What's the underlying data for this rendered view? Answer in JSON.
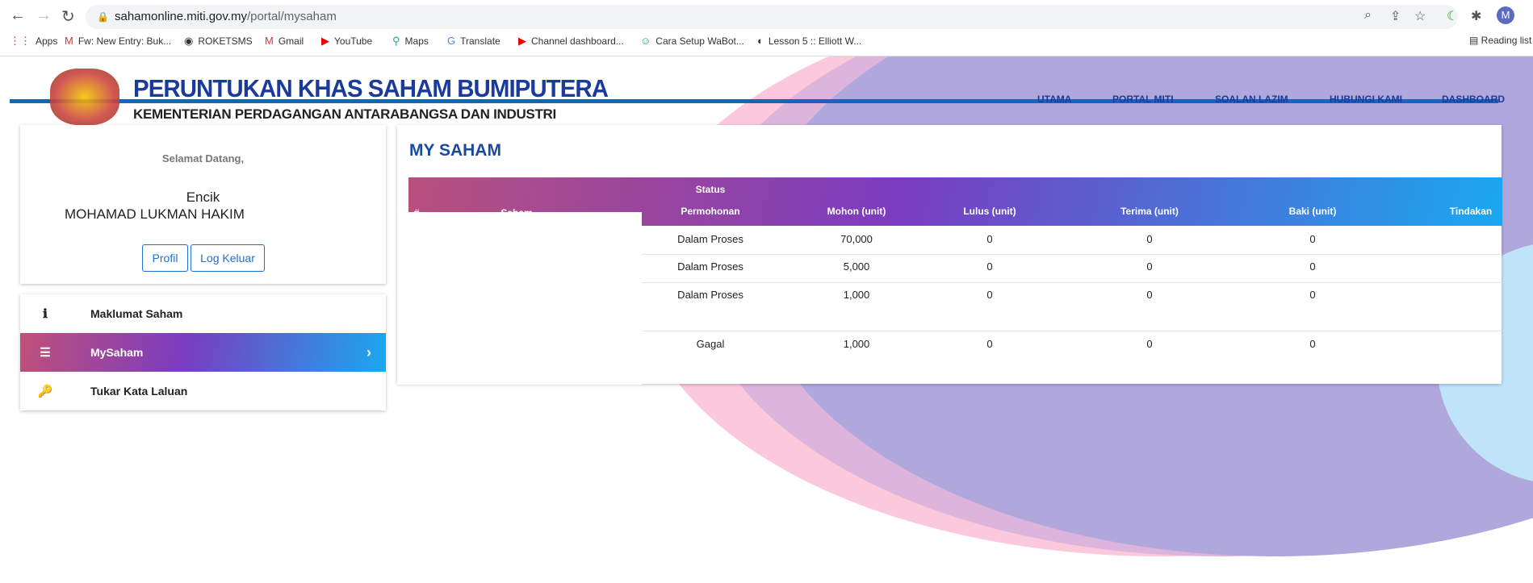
{
  "browser": {
    "url_host": "sahamonline.miti.gov.my",
    "url_path": "/portal/mysaham",
    "avatar": "M",
    "bookmarks": [
      "Apps",
      "Fw: New Entry: Buk...",
      "ROKETSMS",
      "Gmail",
      "YouTube",
      "Maps",
      "Translate",
      "Channel dashboard...",
      "Cara Setup WaBot...",
      "Lesson 5 :: Elliott W..."
    ],
    "reading_list": "Reading list"
  },
  "header": {
    "title": "PERUNTUKAN KHAS SAHAM BUMIPUTERA",
    "subtitle": "KEMENTERIAN PERDAGANGAN ANTARABANGSA DAN INDUSTRI",
    "nav": [
      "UTAMA",
      "PORTAL MITI",
      "SOALAN LAZIM",
      "HUBUNGI KAMI",
      "DASHBOARD"
    ]
  },
  "profile": {
    "welcome": "Selamat Datang,",
    "salutation": "Encik",
    "name": "MOHAMAD LUKMAN HAKIM",
    "profil_label": "Profil",
    "logout_label": "Log Keluar"
  },
  "menu": [
    {
      "label": "Maklumat Saham",
      "icon": "info-circle-icon"
    },
    {
      "label": "MySaham",
      "icon": "list-icon",
      "active": true
    },
    {
      "label": "Tukar Kata Laluan",
      "icon": "key-icon"
    }
  ],
  "main": {
    "title": "MY SAHAM",
    "columns": [
      "#",
      "Saham",
      "Status",
      "Permohonan",
      "Mohon (unit)",
      "Lulus (unit)",
      "Terima (unit)",
      "Baki (unit)",
      "Tindakan"
    ],
    "rows": [
      {
        "status": "Dalam Proses",
        "mohon": "70,000",
        "lulus": "0",
        "terima": "0",
        "baki": "0"
      },
      {
        "status": "Dalam Proses",
        "mohon": "5,000",
        "lulus": "0",
        "terima": "0",
        "baki": "0"
      },
      {
        "status": "Dalam Proses",
        "mohon": "1,000",
        "lulus": "0",
        "terima": "0",
        "baki": "0"
      },
      {
        "status": "Gagal",
        "mohon": "1,000",
        "lulus": "0",
        "terima": "0",
        "baki": "0"
      }
    ]
  },
  "colors": {
    "brand_blue": "#1a3a9c",
    "accent_blue": "#1e6fd0",
    "gradient_start": "#c0507a",
    "gradient_mid": "#7a3cc0",
    "gradient_end": "#1aa8f0"
  }
}
